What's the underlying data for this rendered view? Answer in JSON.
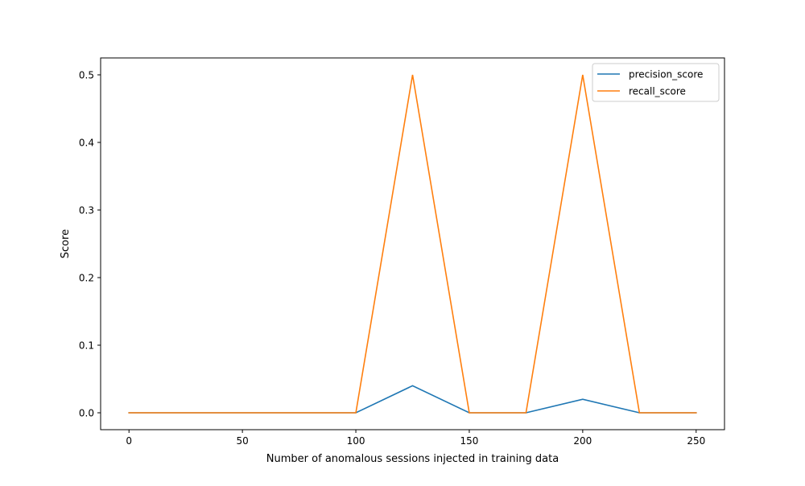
{
  "chart_data": {
    "type": "line",
    "title": "",
    "xlabel": "Number of anomalous sessions injected in training data",
    "ylabel": "Score",
    "x": [
      0,
      25,
      50,
      75,
      100,
      125,
      150,
      175,
      200,
      225,
      250
    ],
    "series": [
      {
        "name": "precision_score",
        "color": "#1f77b4",
        "values": [
          0,
          0,
          0,
          0,
          0,
          0.04,
          0,
          0,
          0.02,
          0,
          0
        ]
      },
      {
        "name": "recall_score",
        "color": "#ff7f0e",
        "values": [
          0,
          0,
          0,
          0,
          0,
          0.5,
          0,
          0,
          0.5,
          0,
          0
        ]
      }
    ],
    "xlim": [
      -12.5,
      262.5
    ],
    "ylim": [
      -0.025,
      0.525
    ],
    "xticks": [
      0,
      50,
      100,
      150,
      200,
      250
    ],
    "xtick_labels": [
      "0",
      "50",
      "100",
      "150",
      "200",
      "250"
    ],
    "yticks": [
      0.0,
      0.1,
      0.2,
      0.3,
      0.4,
      0.5
    ],
    "ytick_labels": [
      "0.0",
      "0.1",
      "0.2",
      "0.3",
      "0.4",
      "0.5"
    ],
    "grid": false,
    "legend_position": "upper right"
  }
}
